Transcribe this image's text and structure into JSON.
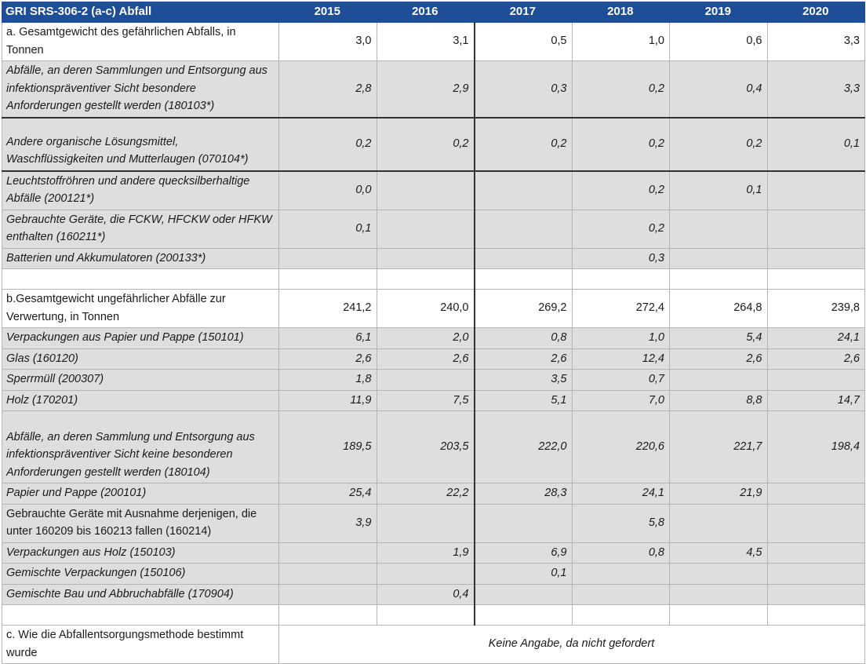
{
  "header": {
    "label": "GRI SRS-306-2 (a-c) Abfall",
    "years": [
      "2015",
      "2016",
      "2017",
      "2018",
      "2019",
      "2020"
    ]
  },
  "rows": [
    {
      "type": "total",
      "label": "a. Gesamtgewicht des gefährlichen Abfalls, in Tonnen",
      "values": [
        "3,0",
        "3,1",
        "0,5",
        "1,0",
        "0,6",
        "3,3"
      ]
    },
    {
      "type": "sub",
      "label": "Abfälle, an deren Sammlungen und Entsorgung aus infektionspräventiver Sicht besondere Anforderungen gestellt werden (180103*)",
      "values": [
        "2,8",
        "2,9",
        "0,3",
        "0,2",
        "0,4",
        "3,3"
      ]
    },
    {
      "type": "sub",
      "label": "Andere organische Lösungsmittel, Waschflüssigkeiten und Mutterlaugen (070104*)",
      "values": [
        "0,2",
        "0,2",
        "0,2",
        "0,2",
        "0,2",
        "0,1"
      ]
    },
    {
      "type": "sub",
      "label": "Leuchtstoffröhren und andere quecksilberhaltige Abfälle (200121*)",
      "values": [
        "0,0",
        "",
        "",
        "0,2",
        "0,1",
        ""
      ]
    },
    {
      "type": "sub",
      "label": "Gebrauchte Geräte, die FCKW, HFCKW oder HFKW enthalten (160211*)",
      "values": [
        "0,1",
        "",
        "",
        "0,2",
        "",
        ""
      ]
    },
    {
      "type": "sub",
      "label": "Batterien und Akkumulatoren (200133*)",
      "values": [
        "",
        "",
        "",
        "0,3",
        "",
        ""
      ]
    },
    {
      "type": "spacer",
      "label": "",
      "values": [
        "",
        "",
        "",
        "",
        "",
        ""
      ]
    },
    {
      "type": "total",
      "label": "b.Gesamtgewicht ungefährlicher Abfälle zur Verwertung, in Tonnen",
      "values": [
        "241,2",
        "240,0",
        "269,2",
        "272,4",
        "264,8",
        "239,8"
      ]
    },
    {
      "type": "sub",
      "label": "Verpackungen aus Papier und Pappe (150101)",
      "values": [
        "6,1",
        "2,0",
        "0,8",
        "1,0",
        "5,4",
        "24,1"
      ]
    },
    {
      "type": "sub",
      "label": "Glas (160120)",
      "values": [
        "2,6",
        "2,6",
        "2,6",
        "12,4",
        "2,6",
        "2,6"
      ]
    },
    {
      "type": "sub",
      "label": "Sperrmüll (200307)",
      "values": [
        "1,8",
        "",
        "3,5",
        "0,7",
        "",
        ""
      ]
    },
    {
      "type": "sub",
      "label": "Holz (170201)",
      "values": [
        "11,9",
        "7,5",
        "5,1",
        "7,0",
        "8,8",
        "14,7"
      ]
    },
    {
      "type": "sub",
      "label": "Abfälle, an deren Sammlung und Entsorgung aus infektionspräventiver Sicht keine besonderen Anforderungen gestellt werden (180104)",
      "values": [
        "189,5",
        "203,5",
        "222,0",
        "220,6",
        "221,7",
        "198,4"
      ]
    },
    {
      "type": "sub",
      "label": "Papier und Pappe (200101)",
      "values": [
        "25,4",
        "22,2",
        "28,3",
        "24,1",
        "21,9",
        ""
      ]
    },
    {
      "type": "sub-plain",
      "label": "Gebrauchte Geräte mit Ausnahme derjenigen, die unter 160209 bis 160213 fallen (160214)",
      "values": [
        "3,9",
        "",
        "",
        "5,8",
        "",
        ""
      ]
    },
    {
      "type": "sub",
      "label": "Verpackungen aus Holz (150103)",
      "values": [
        "",
        "1,9",
        "6,9",
        "0,8",
        "4,5",
        ""
      ]
    },
    {
      "type": "sub",
      "label": "Gemischte Verpackungen (150106)",
      "values": [
        "",
        "",
        "0,1",
        "",
        "",
        ""
      ]
    },
    {
      "type": "sub",
      "label": "Gemischte Bau und Abbruchabfälle (170904)",
      "values": [
        "",
        "0,4",
        "",
        "",
        "",
        ""
      ]
    },
    {
      "type": "spacer",
      "label": "",
      "values": [
        "",
        "",
        "",
        "",
        "",
        ""
      ]
    }
  ],
  "section_c": {
    "label": "c. Wie die Abfallentsorgungsmethode bestimmt wurde",
    "note": "Keine Angabe, da nicht gefordert"
  }
}
